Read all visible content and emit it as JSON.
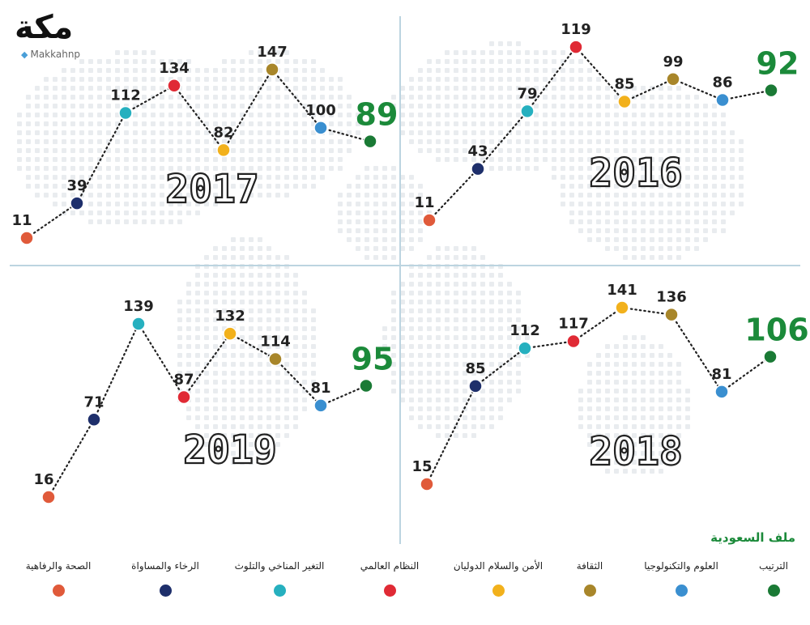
{
  "header": {
    "logo_text": "مكة",
    "handle": "Makkahnp",
    "file_title": "ملف السعودية"
  },
  "legend": [
    {
      "label": "الترتيب",
      "color": "#1a7a35",
      "icon": "green-dot"
    },
    {
      "label": "العلوم والتكنولوجيا",
      "color": "#3a8fd0",
      "icon": "blue-dot"
    },
    {
      "label": "الثقافة",
      "color": "#a8862a",
      "icon": "gold-dot"
    },
    {
      "label": "الأمن والسلام الدوليان",
      "color": "#f2b11c",
      "icon": "yellow-dot"
    },
    {
      "label": "النظام العالمي",
      "color": "#e02a35",
      "icon": "red-dot"
    },
    {
      "label": "التغير المناخي والتلوث",
      "color": "#26b0bf",
      "icon": "teal-dot"
    },
    {
      "label": "الرخاء والمساواة",
      "color": "#1e2f6b",
      "icon": "navy-dot"
    },
    {
      "label": "الصحة والرفاهية",
      "color": "#e05a3a",
      "icon": "orange-dot"
    }
  ],
  "chart_data": [
    {
      "type": "line",
      "title": "2017",
      "categories": [
        "الصحة والرفاهية",
        "الرخاء والمساواة",
        "التغير المناخي والتلوث",
        "النظام العالمي",
        "الأمن والسلام الدوليان",
        "الثقافة",
        "العلوم والتكنولوجيا",
        "الترتيب"
      ],
      "values": [
        11,
        39,
        112,
        134,
        82,
        147,
        100,
        89
      ],
      "labels": [
        "11",
        "39",
        "112",
        "134",
        "82",
        "147",
        "100",
        "89"
      ],
      "y_scale": "rank"
    },
    {
      "type": "line",
      "title": "2016",
      "categories": [
        "الصحة والرفاهية",
        "الرخاء والمساواة",
        "التغير المناخي والتلوث",
        "النظام العالمي",
        "الأمن والسلام الدوليان",
        "الثقافة",
        "العلوم والتكنولوجيا",
        "الترتيب"
      ],
      "values": [
        11,
        43,
        79,
        119,
        85,
        99,
        86,
        92
      ],
      "labels": [
        "11",
        "43",
        "79",
        "119",
        "85",
        "99",
        "86",
        "92"
      ],
      "y_scale": "rank"
    },
    {
      "type": "line",
      "title": "2019",
      "categories": [
        "الصحة والرفاهية",
        "الرخاء والمساواة",
        "التغير المناخي والتلوث",
        "النظام العالمي",
        "الأمن والسلام الدوليان",
        "الثقافة",
        "العلوم والتكنولوجيا",
        "الترتيب"
      ],
      "values": [
        16,
        71,
        139,
        87,
        132,
        114,
        81,
        95
      ],
      "labels": [
        "16",
        "71",
        "139",
        "87",
        "132",
        "114",
        "81",
        "95"
      ],
      "y_scale": "rank"
    },
    {
      "type": "line",
      "title": "2018",
      "categories": [
        "الصحة والرفاهية",
        "الرخاء والمساواة",
        "التغير المناخي والتلوث",
        "النظام العالمي",
        "الأمن والسلام الدوليان",
        "الثقافة",
        "العلوم والتكنولوجيا",
        "الترتيب"
      ],
      "values": [
        15,
        85,
        112,
        117,
        141,
        136,
        81,
        106
      ],
      "labels": [
        "15",
        "85",
        "112",
        "117",
        "141",
        "136",
        "81",
        "106"
      ],
      "y_scale": "rank"
    }
  ]
}
